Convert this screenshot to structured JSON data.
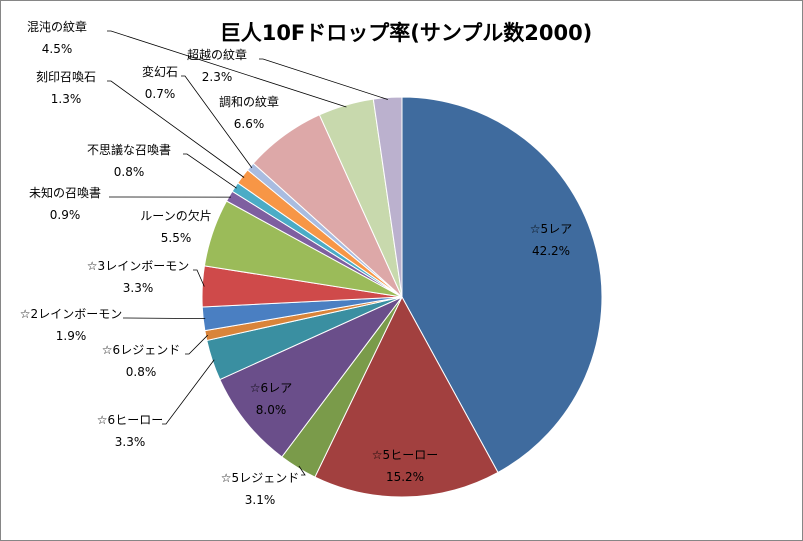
{
  "chart_data": {
    "type": "pie",
    "title": "巨人10Fドロップ率(サンプル数2000)",
    "start": "12 o'clock",
    "direction": "clockwise",
    "slices": [
      {
        "label": "☆5レア",
        "value": 42.2,
        "value_text": "42.2%",
        "color": "#3F6B9E"
      },
      {
        "label": "☆5ヒーロー",
        "value": 15.2,
        "value_text": "15.2%",
        "color": "#A2403F"
      },
      {
        "label": "☆5レジェンド",
        "value": 3.1,
        "value_text": "3.1%",
        "color": "#7A9B4A"
      },
      {
        "label": "☆6レア",
        "value": 8.0,
        "value_text": "8.0%",
        "color": "#6A4E8A"
      },
      {
        "label": "☆6ヒーロー",
        "value": 3.3,
        "value_text": "3.3%",
        "color": "#3A8FA1"
      },
      {
        "label": "☆6レジェンド",
        "value": 0.8,
        "value_text": "0.8%",
        "color": "#D9843A"
      },
      {
        "label": "☆2レインボーモン",
        "value": 1.9,
        "value_text": "1.9%",
        "color": "#4A7FC2"
      },
      {
        "label": "☆3レインボーモン",
        "value": 3.3,
        "value_text": "3.3%",
        "color": "#CF4A4A"
      },
      {
        "label": "ルーンの欠片",
        "value": 5.5,
        "value_text": "5.5%",
        "color": "#9BBB59"
      },
      {
        "label": "未知の召喚書",
        "value": 0.9,
        "value_text": "0.9%",
        "color": "#7E5FA0"
      },
      {
        "label": "不思議な召喚書",
        "value": 0.8,
        "value_text": "0.8%",
        "color": "#4BACC6"
      },
      {
        "label": "刻印召喚石",
        "value": 1.3,
        "value_text": "1.3%",
        "color": "#F79646"
      },
      {
        "label": "変幻石",
        "value": 0.7,
        "value_text": "0.7%",
        "color": "#A9BCE0"
      },
      {
        "label": "調和の紋章",
        "value": 6.6,
        "value_text": "6.6%",
        "color": "#DDA8A8"
      },
      {
        "label": "混沌の紋章",
        "value": 4.5,
        "value_text": "4.5%",
        "color": "#C8D9AD"
      },
      {
        "label": "超越の紋章",
        "value": 2.3,
        "value_text": "2.3%",
        "color": "#BBB1CE"
      }
    ]
  }
}
